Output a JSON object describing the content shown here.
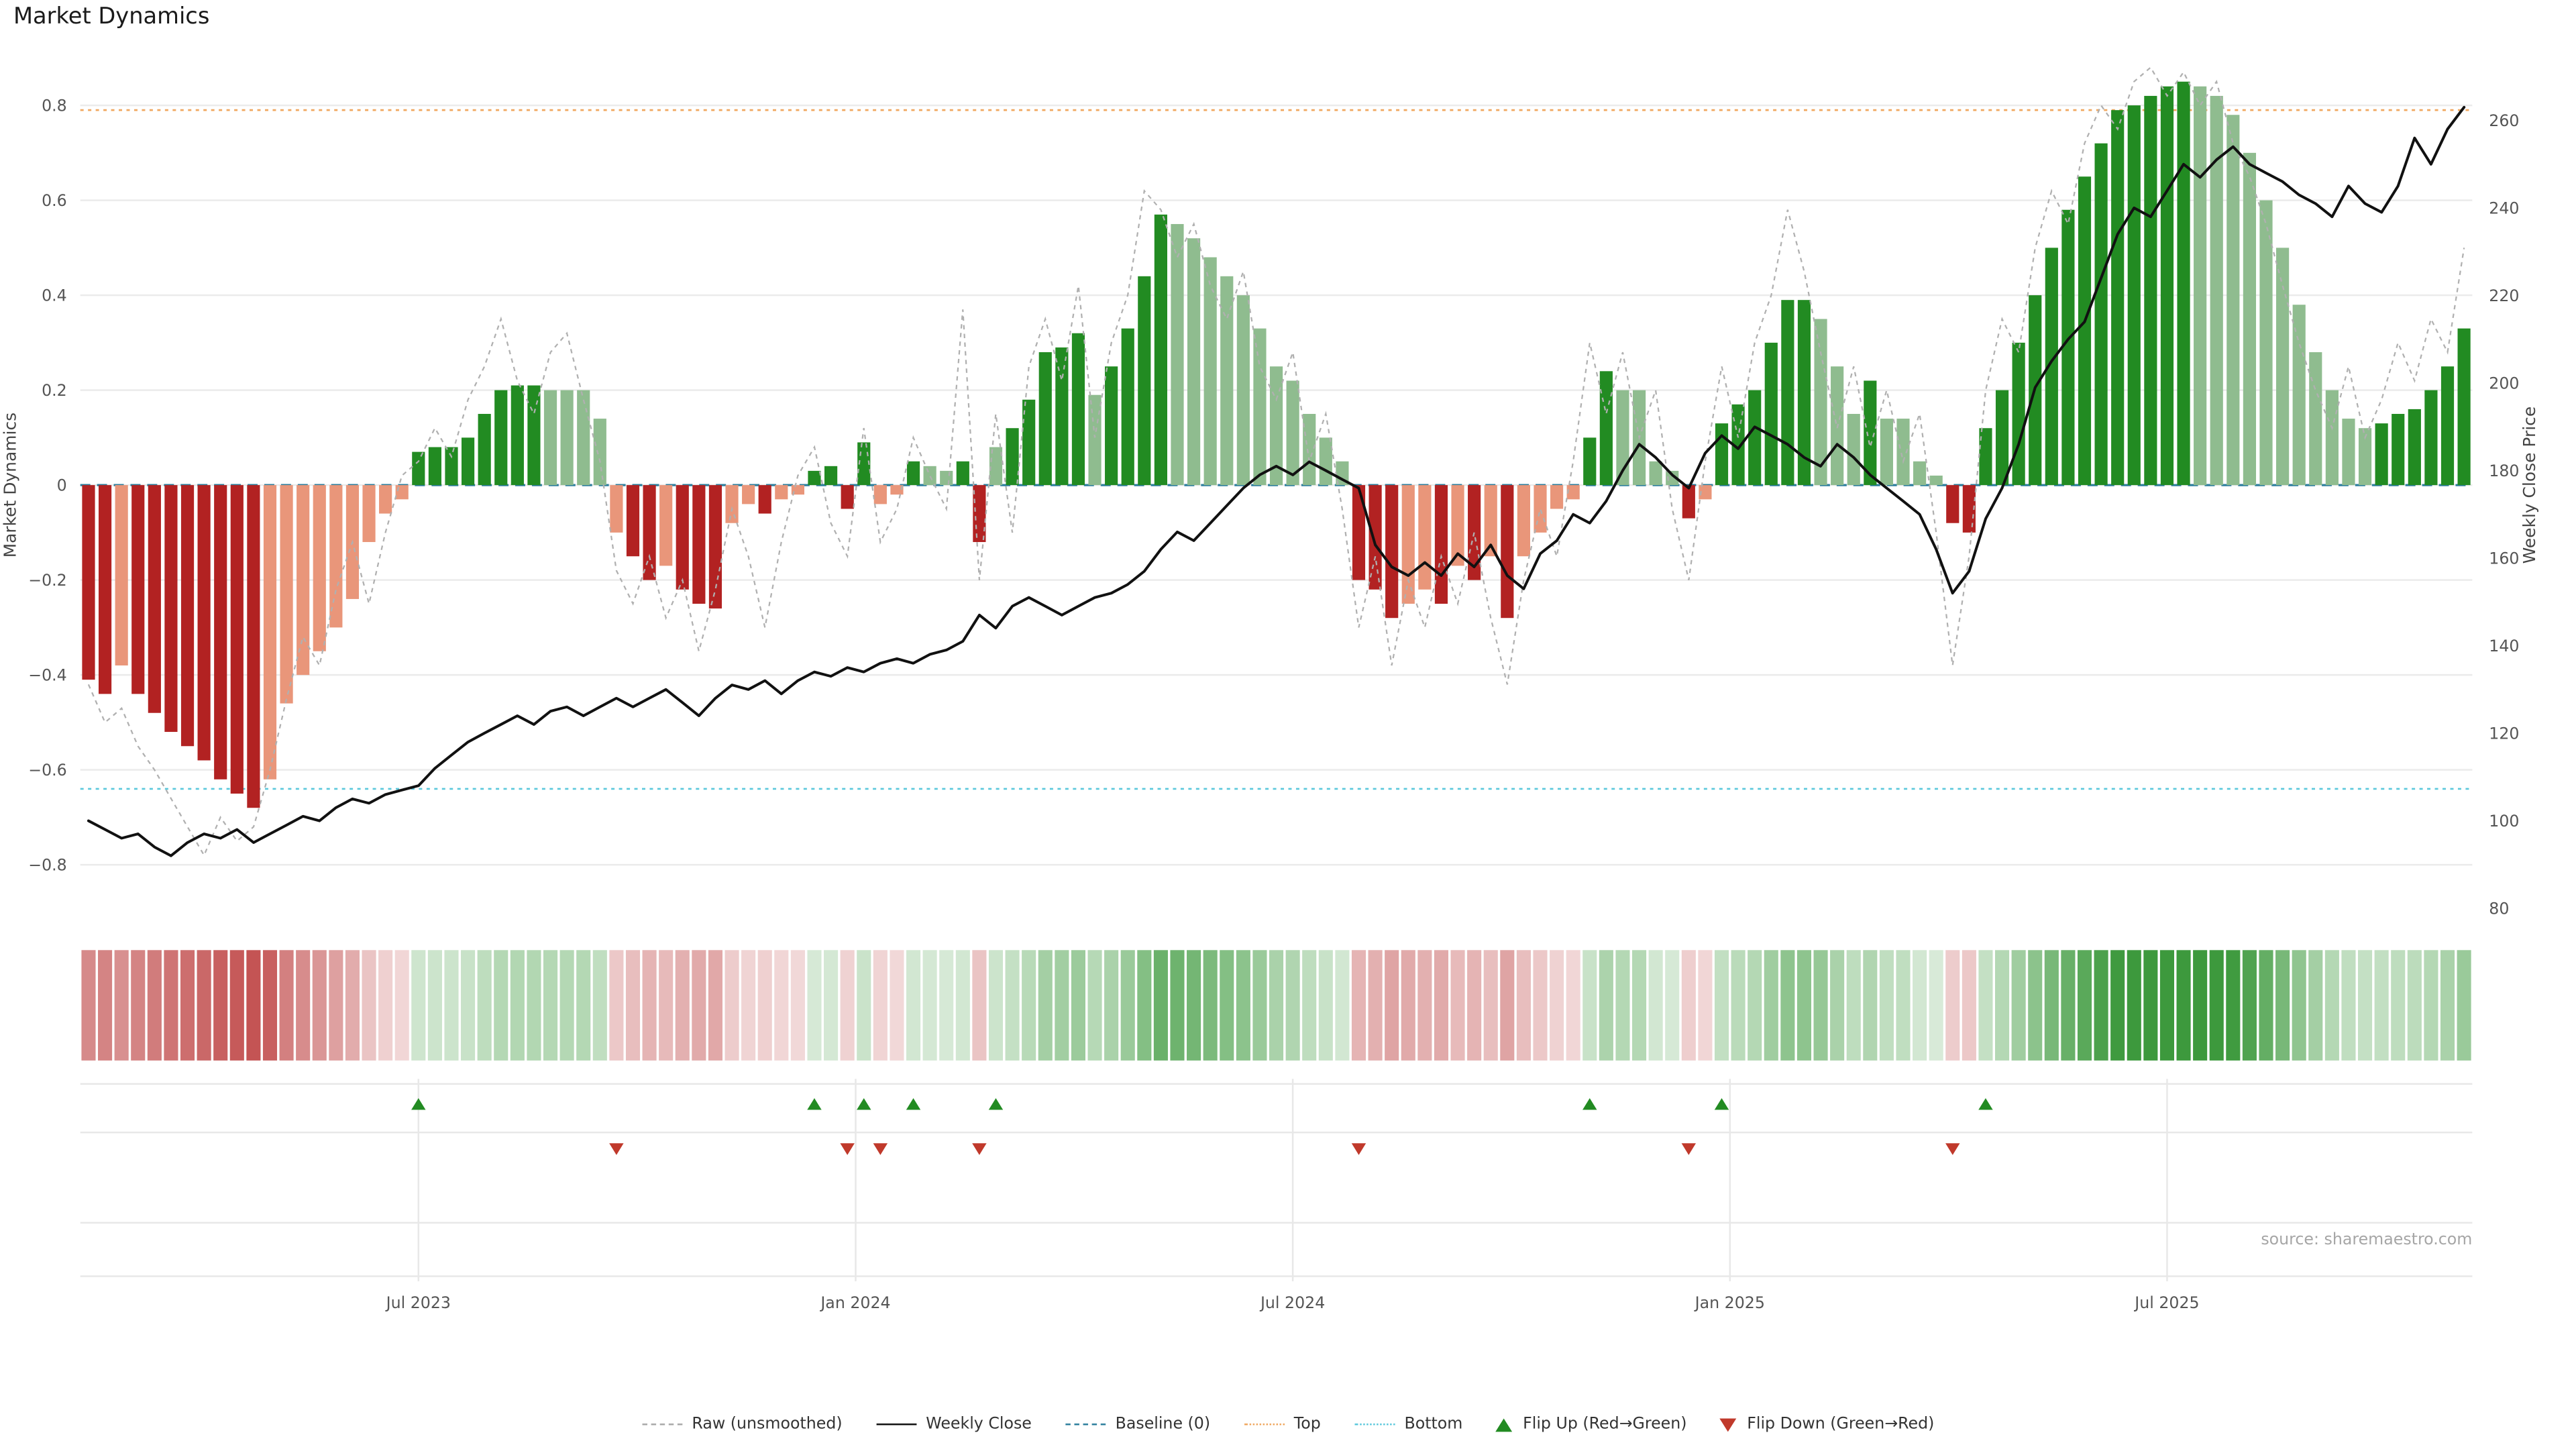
{
  "page": {
    "title": "Market Dynamics",
    "source": "source: sharemaestro.com"
  },
  "legend": {
    "items": [
      {
        "label": "Raw (unsmoothed)"
      },
      {
        "label": "Weekly Close"
      },
      {
        "label": "Baseline (0)"
      },
      {
        "label": "Top"
      },
      {
        "label": "Bottom"
      },
      {
        "label": "Flip Up (Red→Green)"
      },
      {
        "label": "Flip Down (Green→Red)"
      }
    ]
  },
  "chart_data": {
    "type": "bar",
    "title": "Market Dynamics",
    "ylabel_left": "Market Dynamics",
    "ylabel_right": "Weekly Close Price",
    "ylim_left": [
      -0.9,
      0.9
    ],
    "ylim_right": [
      75,
      272
    ],
    "y_ticks_left": [
      {
        "v": -0.8,
        "label": "−0.8"
      },
      {
        "v": -0.6,
        "label": "−0.6"
      },
      {
        "v": -0.4,
        "label": "−0.4"
      },
      {
        "v": -0.2,
        "label": "−0.2"
      },
      {
        "v": 0,
        "label": "0"
      },
      {
        "v": 0.2,
        "label": "0.2"
      },
      {
        "v": 0.4,
        "label": "0.4"
      },
      {
        "v": 0.6,
        "label": "0.6"
      },
      {
        "v": 0.8,
        "label": "0.8"
      }
    ],
    "y_ticks_right": [
      {
        "v": 80,
        "label": "80"
      },
      {
        "v": 100,
        "label": "100"
      },
      {
        "v": 120,
        "label": "120"
      },
      {
        "v": 140,
        "label": "140"
      },
      {
        "v": 160,
        "label": "160"
      },
      {
        "v": 180,
        "label": "180"
      },
      {
        "v": 200,
        "label": "200"
      },
      {
        "v": 220,
        "label": "220"
      },
      {
        "v": 240,
        "label": "240"
      },
      {
        "v": 260,
        "label": "260"
      }
    ],
    "x_ticks": [
      {
        "week": 20,
        "label": "Jul 2023"
      },
      {
        "week": 46.5,
        "label": "Jan 2024"
      },
      {
        "week": 73,
        "label": "Jul 2024"
      },
      {
        "week": 99.5,
        "label": "Jan 2025"
      },
      {
        "week": 126,
        "label": "Jul 2025"
      }
    ],
    "reference_lines": {
      "baseline": 0,
      "top": 0.79,
      "bottom": -0.64
    },
    "series": [
      {
        "name": "Dynamics (smoothed bars)",
        "type": "bar",
        "axis": "left",
        "values": [
          -0.41,
          -0.44,
          -0.38,
          -0.44,
          -0.48,
          -0.52,
          -0.55,
          -0.58,
          -0.62,
          -0.65,
          -0.68,
          -0.62,
          -0.46,
          -0.4,
          -0.35,
          -0.3,
          -0.24,
          -0.12,
          -0.06,
          -0.03,
          0.07,
          0.08,
          0.08,
          0.1,
          0.15,
          0.2,
          0.21,
          0.21,
          0.2,
          0.2,
          0.2,
          0.14,
          -0.1,
          -0.15,
          -0.2,
          -0.17,
          -0.22,
          -0.25,
          -0.26,
          -0.08,
          -0.04,
          -0.06,
          -0.03,
          -0.02,
          0.03,
          0.04,
          -0.05,
          0.09,
          -0.04,
          -0.02,
          0.05,
          0.04,
          0.03,
          0.05,
          -0.12,
          0.08,
          0.12,
          0.18,
          0.28,
          0.29,
          0.32,
          0.19,
          0.25,
          0.33,
          0.44,
          0.57,
          0.55,
          0.52,
          0.48,
          0.44,
          0.4,
          0.33,
          0.25,
          0.22,
          0.15,
          0.1,
          0.05,
          -0.2,
          -0.22,
          -0.28,
          -0.25,
          -0.22,
          -0.25,
          -0.17,
          -0.2,
          -0.15,
          -0.28,
          -0.15,
          -0.1,
          -0.05,
          -0.03,
          0.1,
          0.24,
          0.2,
          0.2,
          0.05,
          0.03,
          -0.07,
          -0.03,
          0.13,
          0.17,
          0.2,
          0.3,
          0.39,
          0.39,
          0.35,
          0.25,
          0.15,
          0.22,
          0.14,
          0.14,
          0.05,
          0.02,
          -0.08,
          -0.1,
          0.12,
          0.2,
          0.3,
          0.4,
          0.5,
          0.58,
          0.65,
          0.72,
          0.79,
          0.8,
          0.82,
          0.84,
          0.85,
          0.84,
          0.82,
          0.78,
          0.7,
          0.6,
          0.5,
          0.38,
          0.28,
          0.2,
          0.14,
          0.12,
          0.13,
          0.15,
          0.16,
          0.2,
          0.25,
          0.33
        ]
      },
      {
        "name": "Raw (unsmoothed)",
        "type": "line",
        "axis": "left",
        "values": [
          -0.42,
          -0.5,
          -0.47,
          -0.55,
          -0.6,
          -0.66,
          -0.72,
          -0.78,
          -0.7,
          -0.75,
          -0.72,
          -0.6,
          -0.45,
          -0.32,
          -0.38,
          -0.22,
          -0.12,
          -0.25,
          -0.1,
          0.02,
          0.05,
          0.12,
          0.06,
          0.18,
          0.25,
          0.35,
          0.22,
          0.15,
          0.28,
          0.32,
          0.18,
          0.05,
          -0.18,
          -0.25,
          -0.15,
          -0.28,
          -0.2,
          -0.35,
          -0.22,
          -0.05,
          -0.15,
          -0.3,
          -0.12,
          0.02,
          0.08,
          -0.08,
          -0.15,
          0.12,
          -0.12,
          -0.05,
          0.1,
          0.02,
          -0.05,
          0.37,
          -0.2,
          0.15,
          -0.1,
          0.25,
          0.35,
          0.22,
          0.42,
          0.1,
          0.3,
          0.4,
          0.62,
          0.58,
          0.48,
          0.55,
          0.42,
          0.35,
          0.45,
          0.25,
          0.18,
          0.28,
          0.05,
          0.15,
          -0.05,
          -0.3,
          -0.15,
          -0.38,
          -0.2,
          -0.3,
          -0.15,
          -0.25,
          -0.1,
          -0.28,
          -0.42,
          -0.2,
          -0.05,
          -0.15,
          0.05,
          0.3,
          0.15,
          0.28,
          0.1,
          0.2,
          -0.05,
          -0.2,
          0.05,
          0.25,
          0.1,
          0.3,
          0.4,
          0.58,
          0.45,
          0.28,
          0.12,
          0.25,
          0.08,
          0.2,
          0.05,
          0.15,
          -0.1,
          -0.38,
          -0.15,
          0.2,
          0.35,
          0.28,
          0.5,
          0.62,
          0.55,
          0.72,
          0.8,
          0.75,
          0.85,
          0.88,
          0.82,
          0.87,
          0.8,
          0.85,
          0.72,
          0.65,
          0.55,
          0.42,
          0.3,
          0.2,
          0.12,
          0.25,
          0.1,
          0.18,
          0.3,
          0.22,
          0.35,
          0.28,
          0.5
        ]
      },
      {
        "name": "Weekly Close",
        "type": "line",
        "axis": "right",
        "values": [
          100,
          98,
          96,
          97,
          94,
          92,
          95,
          97,
          96,
          98,
          95,
          97,
          99,
          101,
          100,
          103,
          105,
          104,
          106,
          107,
          108,
          112,
          115,
          118,
          120,
          122,
          124,
          122,
          125,
          126,
          124,
          126,
          128,
          126,
          128,
          130,
          127,
          124,
          128,
          131,
          130,
          132,
          129,
          132,
          134,
          133,
          135,
          134,
          136,
          137,
          136,
          138,
          139,
          141,
          147,
          144,
          149,
          151,
          149,
          147,
          149,
          151,
          152,
          154,
          157,
          162,
          166,
          164,
          168,
          172,
          176,
          179,
          181,
          179,
          182,
          180,
          178,
          176,
          163,
          158,
          156,
          159,
          156,
          161,
          158,
          163,
          156,
          153,
          161,
          164,
          170,
          168,
          173,
          180,
          186,
          183,
          179,
          176,
          184,
          188,
          185,
          190,
          188,
          186,
          183,
          181,
          186,
          183,
          179,
          176,
          173,
          170,
          162,
          152,
          157,
          169,
          176,
          186,
          199,
          205,
          210,
          214,
          224,
          234,
          240,
          238,
          244,
          250,
          247,
          251,
          254,
          250,
          248,
          246,
          243,
          241,
          238,
          245,
          241,
          239,
          245,
          256,
          250,
          258,
          263
        ]
      }
    ],
    "flip_up_weeks": [
      20,
      44,
      47,
      50,
      55,
      91,
      99,
      115
    ],
    "flip_down_weeks": [
      32,
      46,
      48,
      54,
      77,
      97,
      113
    ],
    "colors": {
      "bar_dark_red": "#b22222",
      "bar_light_red": "#e9967a",
      "bar_dark_green": "#228b22",
      "bar_light_green": "#8fbc8f",
      "raw_line": "#b0b0b0",
      "close_line": "#111111",
      "baseline": "#2e7f9e",
      "top_line": "#f0a860",
      "bottom_line": "#5bc8dc",
      "flip_up": "#228b22",
      "flip_down": "#c0392b",
      "grid": "#ebebeb"
    }
  }
}
